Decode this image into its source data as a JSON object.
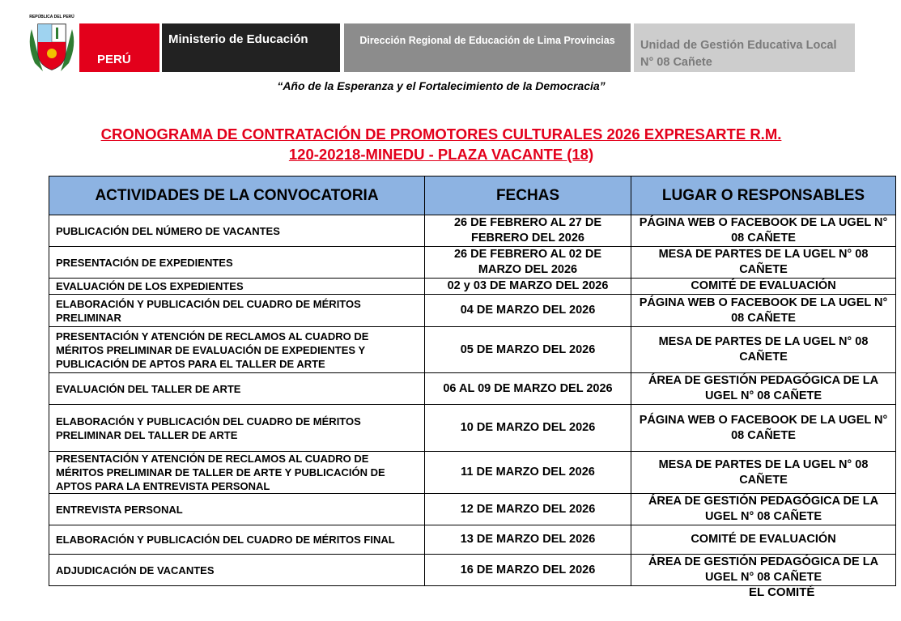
{
  "header": {
    "shield_text": "REPÚBLICA DEL PERÚ",
    "country": "PERÚ",
    "ministry": "Ministerio de Educación",
    "regional": "Dirección Regional de Educación de Lima Provincias",
    "local": "Unidad de Gestión Educativa Local N° 08 Cañete"
  },
  "motto": "“Año de la Esperanza y el Fortalecimiento de la Democracia”",
  "title": [
    "CRONOGRAMA DE CONTRATACIÓN DE PROMOTORES CULTURALES 2026 EXPRESARTE R.M.",
    "120-20218-MINEDU - PLAZA VACANTE (18)"
  ],
  "table": {
    "columns": [
      "ACTIVIDADES DE LA CONVOCATORIA",
      "FECHAS",
      "LUGAR O RESPONSABLES"
    ],
    "rows": [
      [
        "PUBLICACIÓN DEL NÚMERO DE VACANTES",
        "26 DE FEBRERO AL 27 DE FEBRERO DEL 2026",
        "PÁGINA WEB O FACEBOOK DE LA UGEL N° 08 CAÑETE"
      ],
      [
        "PRESENTACIÓN DE EXPEDIENTES",
        "26 DE FEBRERO AL 02 DE MARZO DEL 2026",
        "MESA DE PARTES DE LA UGEL N° 08 CAÑETE"
      ],
      [
        "EVALUACIÓN DE LOS EXPEDIENTES",
        "02 y 03 DE MARZO DEL 2026",
        "COMITÉ DE EVALUACIÓN"
      ],
      [
        "ELABORACIÓN Y PUBLICACIÓN DEL CUADRO DE MÉRITOS PRELIMINAR",
        "04 DE MARZO DEL 2026",
        "PÁGINA WEB O FACEBOOK DE LA UGEL N° 08 CAÑETE"
      ],
      [
        "PRESENTACIÓN Y ATENCIÓN DE RECLAMOS AL CUADRO DE MÉRITOS PRELIMINAR DE EVALUACIÓN DE EXPEDIENTES Y PUBLICACIÓN DE APTOS PARA EL TALLER DE ARTE",
        "05 DE MARZO DEL 2026",
        "MESA DE PARTES DE LA UGEL N° 08 CAÑETE"
      ],
      [
        "EVALUACIÓN DEL TALLER DE ARTE",
        "06 AL 09 DE MARZO DEL 2026",
        "ÁREA DE GESTIÓN PEDAGÓGICA DE LA UGEL N° 08 CAÑETE"
      ],
      [
        "ELABORACIÓN Y PUBLICACIÓN DEL CUADRO DE MÉRITOS PRELIMINAR DEL TALLER DE ARTE",
        "10 DE MARZO DEL 2026",
        "PÁGINA WEB O FACEBOOK DE LA UGEL N° 08 CAÑETE"
      ],
      [
        "PRESENTACIÓN Y ATENCIÓN DE RECLAMOS AL CUADRO DE MÉRITOS PRELIMINAR DE TALLER DE ARTE Y PUBLICACIÓN DE APTOS PARA LA ENTREVISTA PERSONAL",
        "11 DE MARZO DEL 2026",
        "MESA DE PARTES DE LA UGEL N° 08 CAÑETE"
      ],
      [
        "ENTREVISTA PERSONAL",
        "12 DE MARZO DEL 2026",
        "ÁREA DE GESTIÓN PEDAGÓGICA DE LA UGEL N° 08 CAÑETE"
      ],
      [
        "ELABORACIÓN Y PUBLICACIÓN DEL CUADRO DE MÉRITOS FINAL",
        "13 DE MARZO DEL 2026",
        "COMITÉ DE EVALUACIÓN"
      ],
      [
        "ADJUDICACIÓN DE VACANTES",
        "16 DE MARZO DEL 2026",
        "ÁREA DE GESTIÓN PEDAGÓGICA DE LA UGEL N° 08 CAÑETE"
      ]
    ]
  },
  "signature": "EL COMITÉ"
}
